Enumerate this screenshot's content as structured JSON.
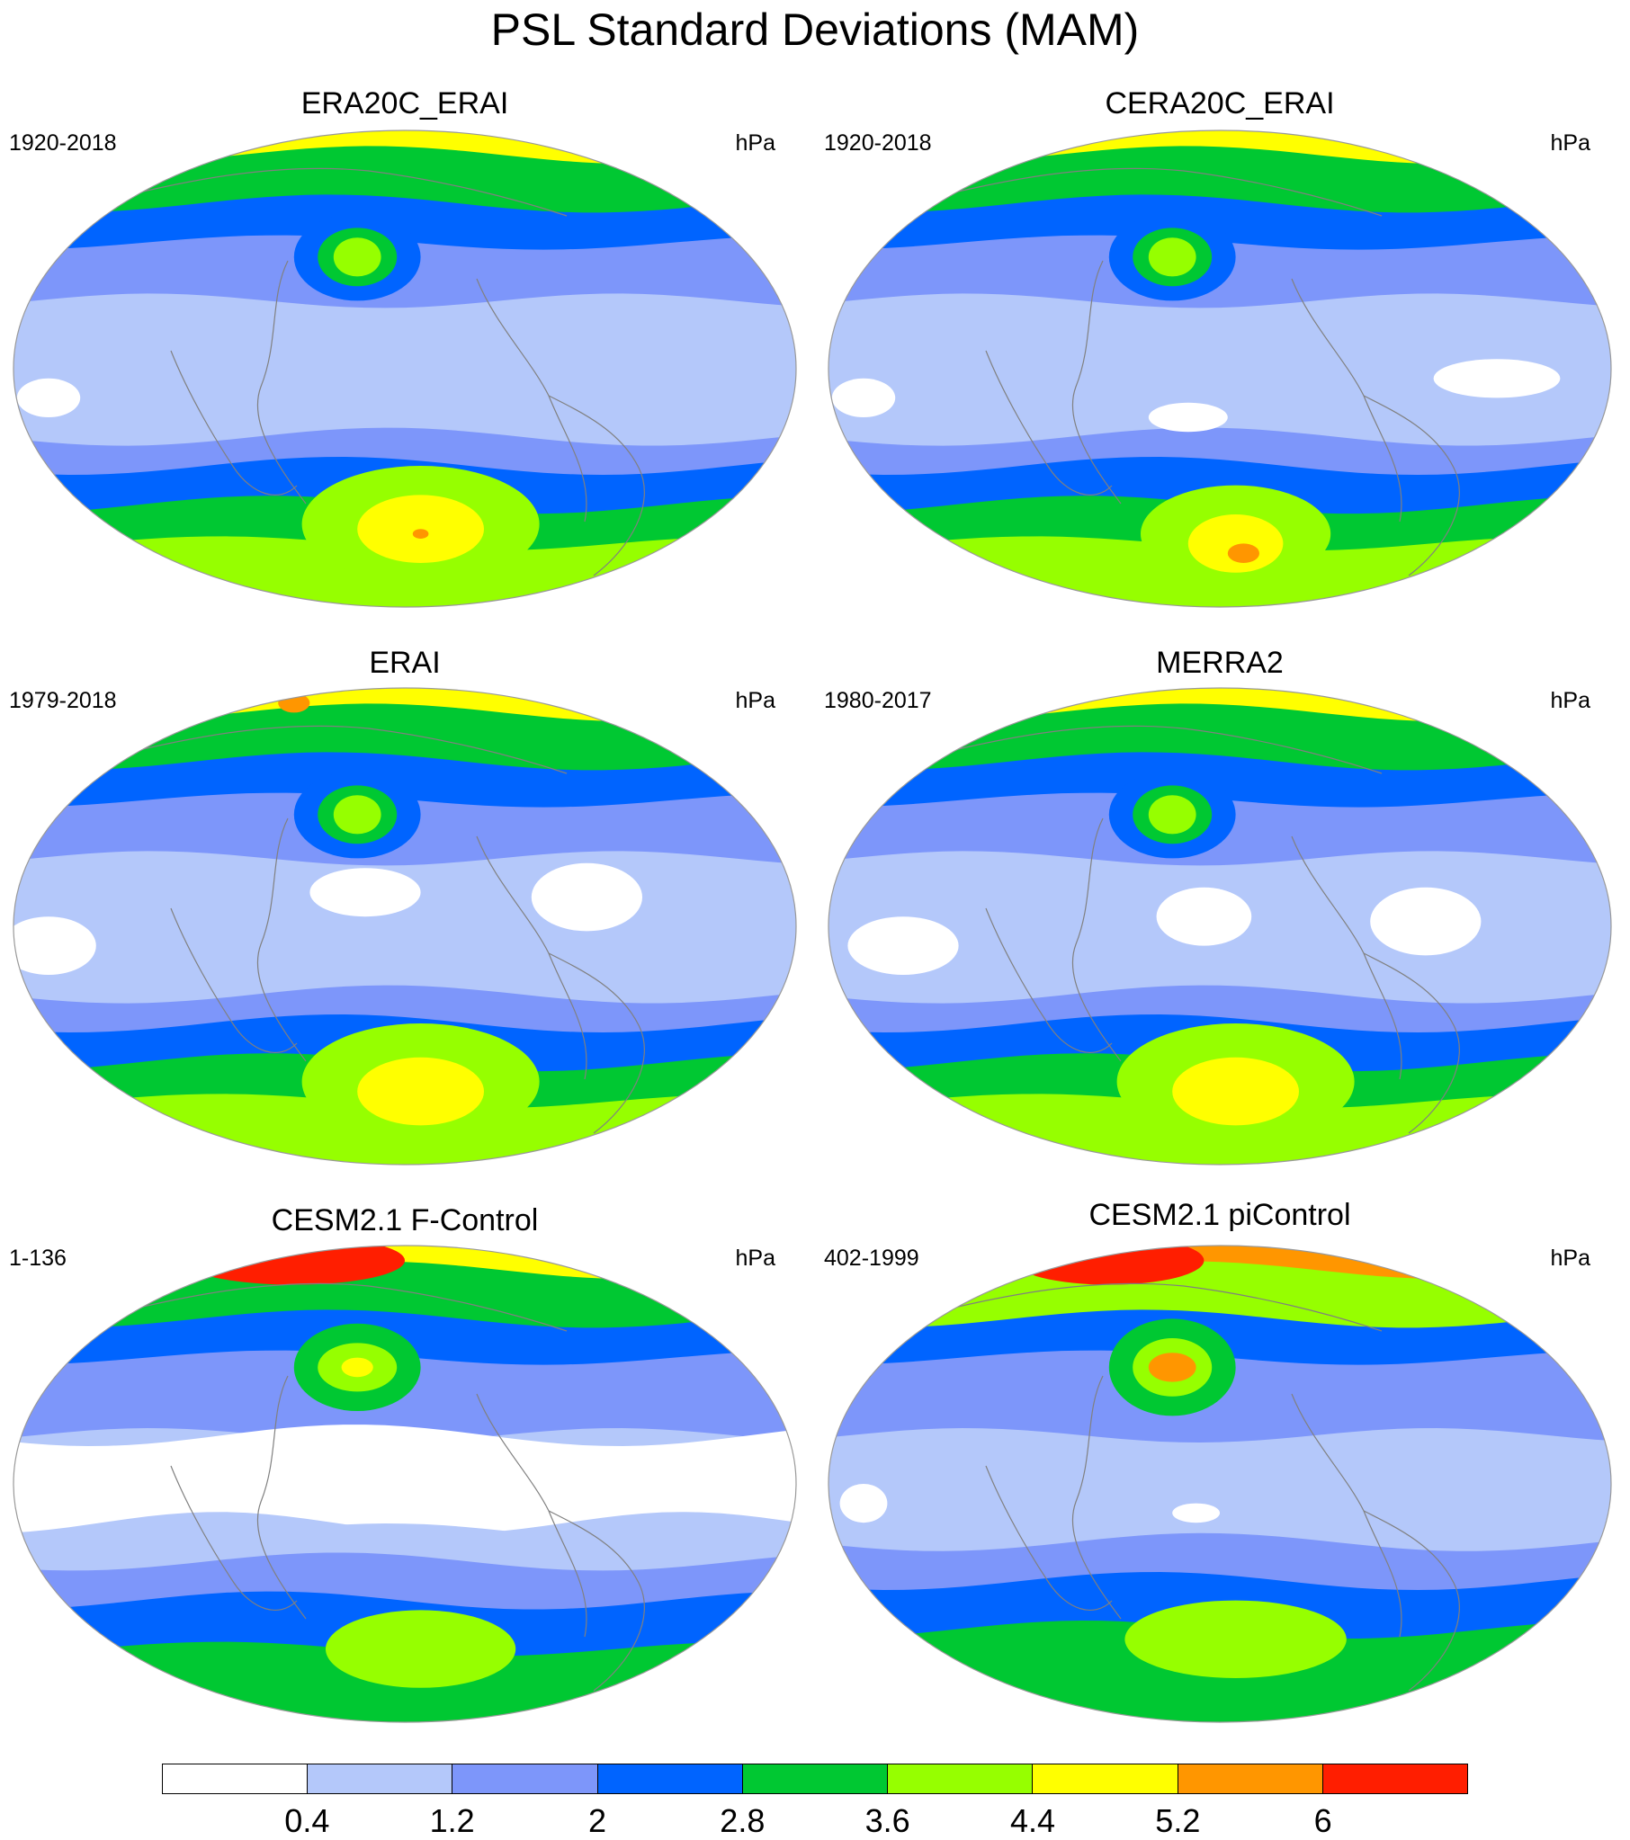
{
  "title": "PSL Standard Deviations (MAM)",
  "panels": [
    {
      "title": "ERA20C_ERAI",
      "left_text": "1920-2018",
      "right_text": "hPa"
    },
    {
      "title": "CERA20C_ERAI",
      "left_text": "1920-2018",
      "right_text": "hPa"
    },
    {
      "title": "ERAI",
      "left_text": "1979-2018",
      "right_text": "hPa"
    },
    {
      "title": "MERRA2",
      "left_text": "1980-2017",
      "right_text": "hPa"
    },
    {
      "title": "CESM2.1 F-Control",
      "left_text": "1-136",
      "right_text": "hPa"
    },
    {
      "title": "CESM2.1 piControl",
      "left_text": "402-1999",
      "right_text": "hPa"
    }
  ],
  "colorbar": {
    "colors": [
      "#ffffff",
      "#b4c8fa",
      "#7d96fa",
      "#0064ff",
      "#00c832",
      "#96ff00",
      "#ffff00",
      "#ff9600",
      "#ff1e00"
    ],
    "labels": [
      "0.4",
      "1.2",
      "2",
      "2.8",
      "3.6",
      "4.4",
      "5.2",
      "6"
    ]
  },
  "colors": {
    "coast": "#808080",
    "frame": "#999999"
  }
}
